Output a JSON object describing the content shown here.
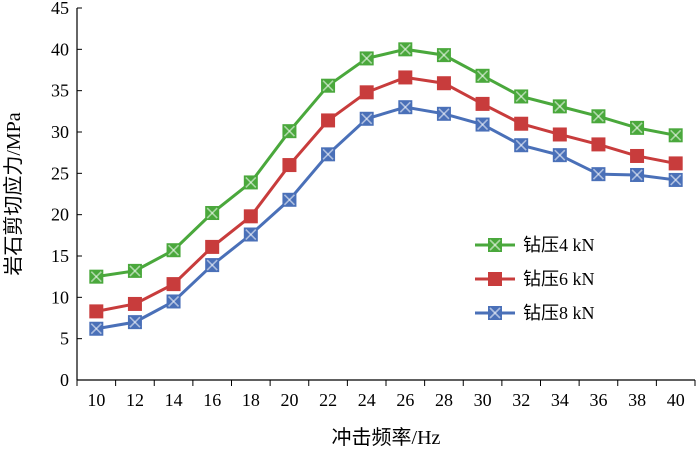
{
  "chart_data": {
    "type": "line",
    "title": "",
    "xlabel": "冲击频率/Hz",
    "ylabel": "岩石剪切应力/MPa",
    "x": [
      10,
      12,
      14,
      16,
      18,
      20,
      22,
      24,
      26,
      28,
      30,
      32,
      34,
      36,
      38,
      40
    ],
    "xlim": [
      9,
      41
    ],
    "ylim": [
      0,
      45
    ],
    "xticks": [
      "10",
      "12",
      "14",
      "16",
      "18",
      "20",
      "22",
      "24",
      "26",
      "28",
      "30",
      "32",
      "34",
      "36",
      "38",
      "40"
    ],
    "yticks": [
      "0",
      "5",
      "10",
      "15",
      "20",
      "25",
      "30",
      "35",
      "40",
      "45"
    ],
    "grid": false,
    "legend_position": "center-right",
    "series": [
      {
        "name": "钻压4 kN",
        "color": "#4aa83c",
        "marker": "x-square",
        "values": [
          12.5,
          13.2,
          15.7,
          20.2,
          23.9,
          30.1,
          35.6,
          38.9,
          40.0,
          39.3,
          36.8,
          34.3,
          33.1,
          31.9,
          30.5,
          29.6
        ]
      },
      {
        "name": "钻压6 kN",
        "color": "#c83c3c",
        "marker": "square",
        "values": [
          8.3,
          9.2,
          11.6,
          16.1,
          19.8,
          26.0,
          31.4,
          34.8,
          36.6,
          35.9,
          33.4,
          31.0,
          29.7,
          28.5,
          27.1,
          26.2
        ]
      },
      {
        "name": "钻压8 kN",
        "color": "#4a70b8",
        "marker": "x-square",
        "values": [
          6.2,
          7.0,
          9.5,
          13.9,
          17.6,
          21.8,
          27.3,
          31.6,
          33.0,
          32.2,
          30.9,
          28.4,
          27.2,
          24.9,
          24.8,
          24.2
        ]
      }
    ]
  }
}
